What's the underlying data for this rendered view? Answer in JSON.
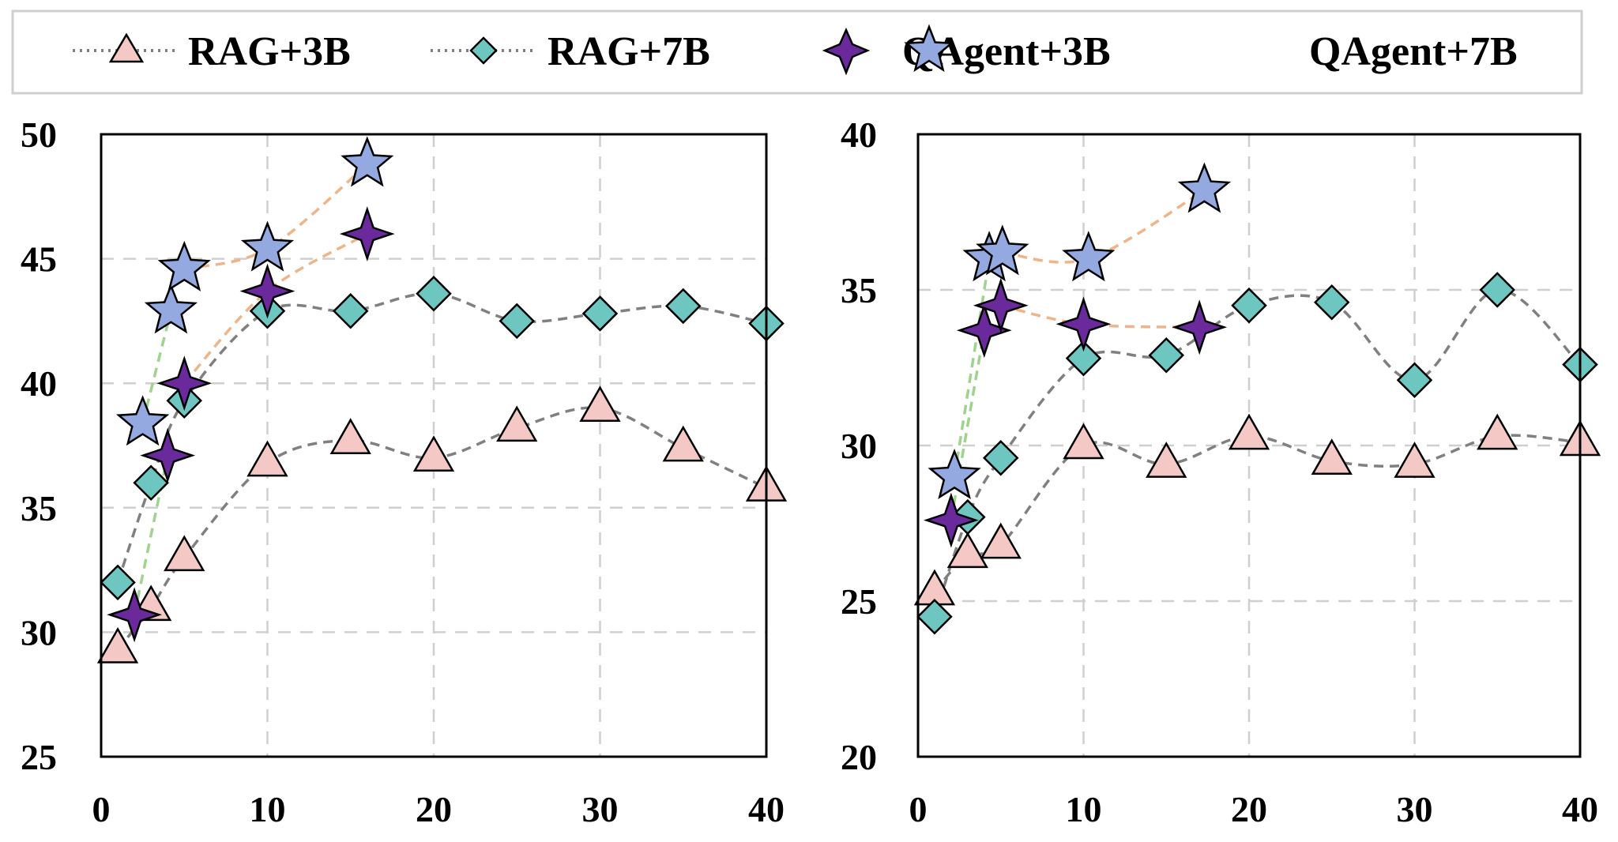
{
  "legend": {
    "items": [
      {
        "label": "RAG+3B",
        "marker": "triangle-icon"
      },
      {
        "label": "RAG+7B",
        "marker": "diamond-icon"
      },
      {
        "label": "QAgent+3B",
        "marker": "four-point-star-icon"
      },
      {
        "label": "QAgent+7B",
        "marker": "star-icon"
      }
    ]
  },
  "colors": {
    "rag3b": "#f4c9c5",
    "rag7b": "#6ec6c0",
    "qagent3b": "#6b2a9c",
    "qagent7b": "#93a9e0",
    "rag_line": "#808080",
    "orange_line": "#f0b488",
    "green_line": "#9fd38e"
  },
  "chart_data": [
    {
      "type": "line",
      "xlim": [
        0,
        40
      ],
      "ylim": [
        25,
        50
      ],
      "x_ticks": [
        0,
        10,
        20,
        30,
        40
      ],
      "y_ticks": [
        25,
        30,
        35,
        40,
        45,
        50
      ],
      "grid": true,
      "series": [
        {
          "name": "RAG+3B",
          "marker": "triangle",
          "x": [
            1,
            3,
            5,
            10,
            15,
            20,
            25,
            30,
            35,
            40
          ],
          "y": [
            29.3,
            31.0,
            33.0,
            36.8,
            37.7,
            37.0,
            38.2,
            39.0,
            37.4,
            35.8
          ]
        },
        {
          "name": "RAG+7B",
          "marker": "diamond",
          "x": [
            1,
            3,
            5,
            10,
            15,
            20,
            25,
            30,
            35,
            40
          ],
          "y": [
            32.0,
            36.0,
            39.3,
            42.9,
            42.9,
            43.6,
            42.5,
            42.8,
            43.1,
            42.4
          ]
        },
        {
          "name": "QAgent+3B",
          "marker": "four-point-star",
          "x": [
            2,
            4,
            5,
            10,
            16
          ],
          "y": [
            30.7,
            37.1,
            40.0,
            43.7,
            46.0
          ]
        },
        {
          "name": "QAgent+7B",
          "marker": "star",
          "x": [
            2.5,
            4.2,
            5,
            10,
            16
          ],
          "y": [
            38.4,
            42.9,
            44.6,
            45.4,
            48.8
          ]
        }
      ]
    },
    {
      "type": "line",
      "xlim": [
        0,
        40
      ],
      "ylim": [
        20,
        40
      ],
      "x_ticks": [
        0,
        10,
        20,
        30,
        40
      ],
      "y_ticks": [
        20,
        25,
        30,
        35,
        40
      ],
      "grid": true,
      "series": [
        {
          "name": "RAG+3B",
          "marker": "triangle",
          "x": [
            1,
            3,
            5,
            10,
            15,
            20,
            25,
            30,
            35,
            40
          ],
          "y": [
            25.3,
            26.5,
            26.8,
            30.0,
            29.4,
            30.3,
            29.5,
            29.4,
            30.3,
            30.1
          ]
        },
        {
          "name": "RAG+7B",
          "marker": "diamond",
          "x": [
            1,
            3,
            5,
            10,
            15,
            20,
            25,
            30,
            35,
            40
          ],
          "y": [
            24.5,
            27.7,
            29.6,
            32.8,
            32.9,
            34.5,
            34.6,
            32.1,
            35.0,
            32.6
          ]
        },
        {
          "name": "QAgent+3B",
          "marker": "four-point-star",
          "x": [
            2,
            4,
            5,
            10,
            17
          ],
          "y": [
            27.6,
            33.7,
            34.5,
            33.9,
            33.8
          ]
        },
        {
          "name": "QAgent+7B",
          "marker": "star",
          "x": [
            2.2,
            4.3,
            5.1,
            10.3,
            17.3
          ],
          "y": [
            29.0,
            36.0,
            36.2,
            36.0,
            38.2
          ]
        }
      ]
    }
  ]
}
